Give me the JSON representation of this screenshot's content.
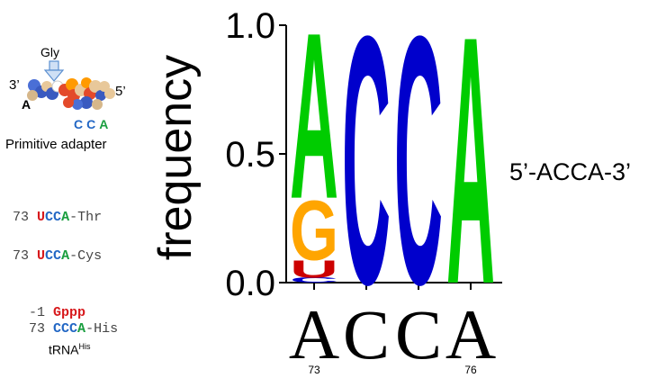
{
  "adapter": {
    "gly_label": "Gly",
    "label_3prime": "3’",
    "label_5prime": "5’",
    "letter_A": "A",
    "letters_CCA": [
      "C",
      "C",
      "A"
    ],
    "caption": "Primitive adapter"
  },
  "sequences": [
    {
      "num": "73",
      "first": "U",
      "rest": "CCA",
      "suffix": "-Thr"
    },
    {
      "num": "73",
      "first": "U",
      "rest": "CCA",
      "suffix": "-Cys"
    }
  ],
  "his": {
    "line1_num": "-1",
    "line1_seq": "Gppp",
    "line2_num": "73",
    "line2_seq_c": "CCC",
    "line2_seq_a": "A",
    "line2_suffix": "-His",
    "trna_label": "tRNA",
    "trna_super": "His"
  },
  "logo_label": "5’-ACCA-3’",
  "colors": {
    "A": "#00cc00",
    "C": "#0000cc",
    "G": "#ffa500",
    "U": "#cc0000"
  },
  "chart_data": {
    "type": "sequence_logo",
    "ylabel": "frequency",
    "ylim": [
      0,
      1.0
    ],
    "yticks": [
      {
        "v": 0.0,
        "label": "0.0"
      },
      {
        "v": 0.5,
        "label": "0.5"
      },
      {
        "v": 1.0,
        "label": "1.0"
      }
    ],
    "consensus": [
      "A",
      "C",
      "C",
      "A"
    ],
    "position_labels": [
      {
        "pos": 1,
        "label": "73"
      },
      {
        "pos": 4,
        "label": "76"
      }
    ],
    "positions": [
      {
        "pos": 1,
        "stack": [
          {
            "base": "C",
            "freq": 0.02
          },
          {
            "base": "U",
            "freq": 0.07
          },
          {
            "base": "G",
            "freq": 0.24
          },
          {
            "base": "A",
            "freq": 0.67
          }
        ]
      },
      {
        "pos": 2,
        "stack": [
          {
            "base": "C",
            "freq": 1.0
          }
        ]
      },
      {
        "pos": 3,
        "stack": [
          {
            "base": "C",
            "freq": 1.0
          }
        ]
      },
      {
        "pos": 4,
        "stack": [
          {
            "base": "A",
            "freq": 1.0
          }
        ]
      }
    ]
  }
}
